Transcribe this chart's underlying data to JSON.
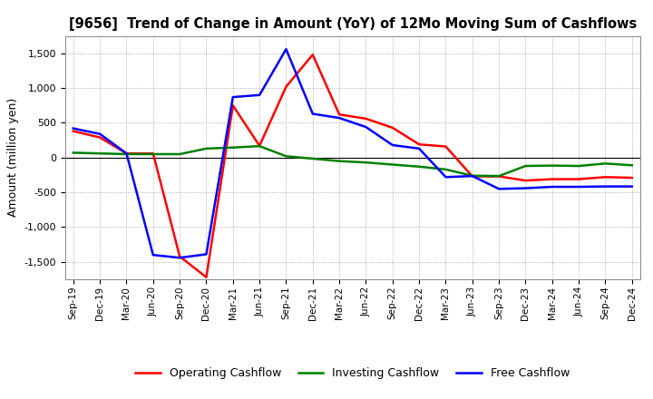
{
  "title": "[9656]  Trend of Change in Amount (YoY) of 12Mo Moving Sum of Cashflows",
  "ylabel": "Amount (million yen)",
  "x_labels": [
    "Sep-19",
    "Dec-19",
    "Mar-20",
    "Jun-20",
    "Sep-20",
    "Dec-20",
    "Mar-21",
    "Jun-21",
    "Sep-21",
    "Dec-21",
    "Mar-22",
    "Jun-22",
    "Sep-22",
    "Dec-22",
    "Mar-23",
    "Jun-23",
    "Sep-23",
    "Dec-23",
    "Mar-24",
    "Jun-24",
    "Sep-24",
    "Dec-24"
  ],
  "operating": [
    380,
    290,
    60,
    60,
    -1420,
    -1720,
    750,
    170,
    1020,
    1480,
    620,
    560,
    430,
    190,
    160,
    -270,
    -270,
    -330,
    -310,
    -310,
    -280,
    -290
  ],
  "investing": [
    70,
    60,
    50,
    50,
    50,
    130,
    145,
    165,
    20,
    -15,
    -50,
    -70,
    -100,
    -130,
    -170,
    -260,
    -265,
    -120,
    -115,
    -120,
    -85,
    -110
  ],
  "free": [
    420,
    340,
    60,
    -1400,
    -1440,
    -1390,
    870,
    900,
    1560,
    630,
    570,
    440,
    180,
    130,
    -280,
    -265,
    -450,
    -440,
    -420,
    -420,
    -415,
    -415
  ],
  "operating_color": "#ff0000",
  "investing_color": "#008000",
  "free_color": "#0000ff",
  "ylim": [
    -1750,
    1750
  ],
  "yticks": [
    -1500,
    -1000,
    -500,
    0,
    500,
    1000,
    1500
  ],
  "background_color": "#ffffff",
  "grid_color": "#999999",
  "line_width": 1.8
}
